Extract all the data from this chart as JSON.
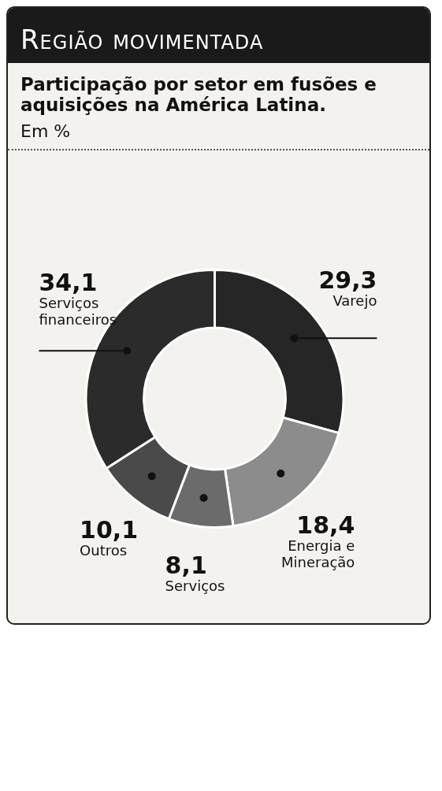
{
  "chart_data": {
    "type": "donut",
    "title": "Região movimentada",
    "subtitle": "Participação por setor em fusões e aquisições na América Latina.",
    "annotations": [
      "Em %"
    ],
    "categories": [
      "Varejo",
      "Energia e Mineração",
      "Serviços",
      "Outros",
      "Serviços financeiros"
    ],
    "values": [
      29.3,
      18.4,
      8.1,
      10.1,
      34.1
    ],
    "value_labels": [
      "29,3",
      "18,4",
      "8,1",
      "10,1",
      "34,1"
    ],
    "colors": [
      "#262626",
      "#8c8c8c",
      "#6b6b6b",
      "#4a4a4a",
      "#2b2b2b"
    ],
    "legend": false
  }
}
